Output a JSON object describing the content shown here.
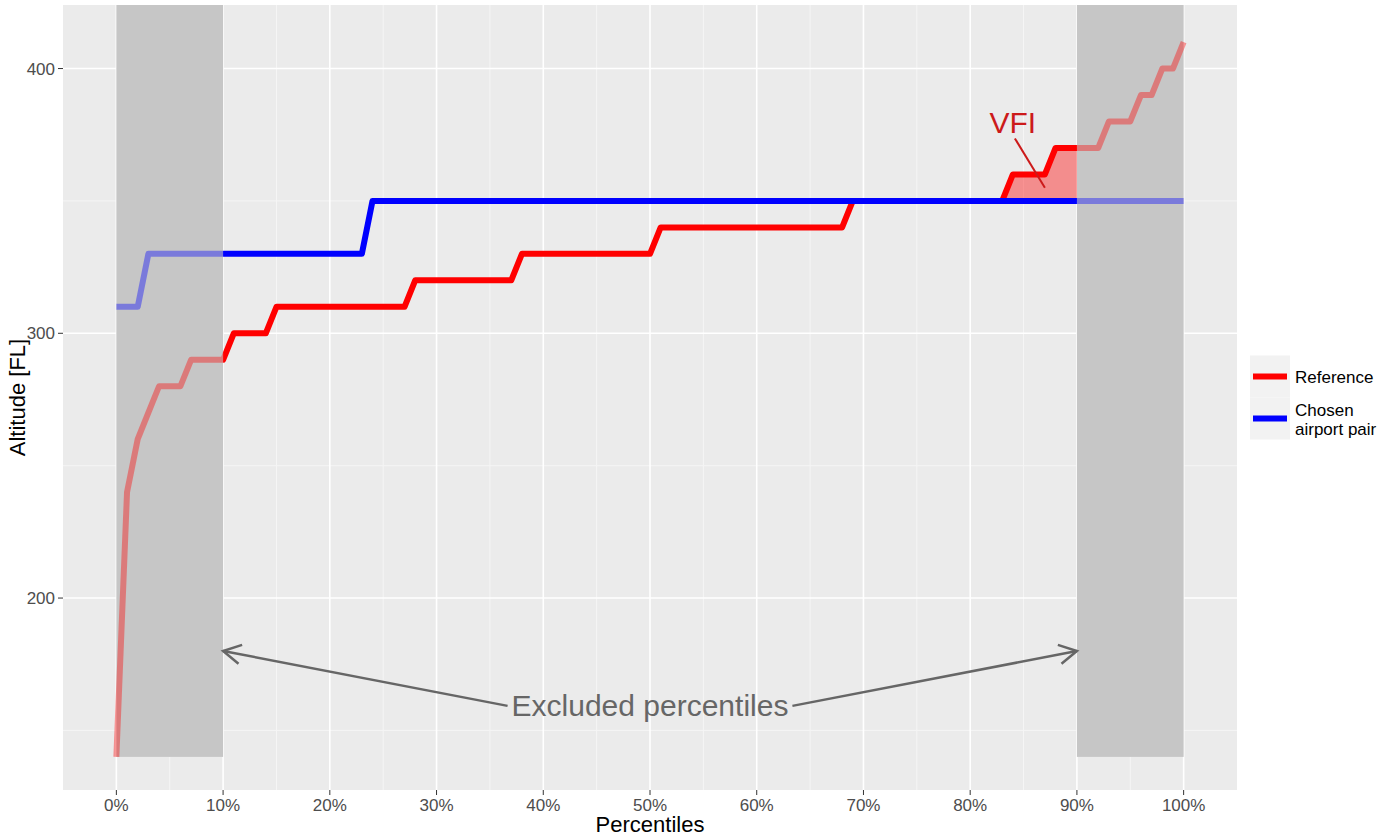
{
  "chart_data": {
    "type": "line",
    "x_label": "Percentiles",
    "y_label": "Altitude [FL]",
    "x": [
      0,
      1,
      2,
      3,
      4,
      5,
      6,
      7,
      8,
      9,
      10,
      11,
      12,
      13,
      14,
      15,
      16,
      17,
      18,
      19,
      20,
      21,
      22,
      23,
      24,
      25,
      26,
      27,
      28,
      29,
      30,
      31,
      32,
      33,
      34,
      35,
      36,
      37,
      38,
      39,
      40,
      41,
      42,
      43,
      44,
      45,
      46,
      47,
      48,
      49,
      50,
      51,
      52,
      53,
      54,
      55,
      56,
      57,
      58,
      59,
      60,
      61,
      62,
      63,
      64,
      65,
      66,
      67,
      68,
      69,
      70,
      71,
      72,
      73,
      74,
      75,
      76,
      77,
      78,
      79,
      80,
      81,
      82,
      83,
      84,
      85,
      86,
      87,
      88,
      89,
      90,
      91,
      92,
      93,
      94,
      95,
      96,
      97,
      98,
      99,
      100
    ],
    "xlim": [
      -5,
      105
    ],
    "xticks": [
      {
        "value": 0,
        "label": "0%"
      },
      {
        "value": 10,
        "label": "10%"
      },
      {
        "value": 20,
        "label": "20%"
      },
      {
        "value": 30,
        "label": "30%"
      },
      {
        "value": 40,
        "label": "40%"
      },
      {
        "value": 50,
        "label": "50%"
      },
      {
        "value": 60,
        "label": "60%"
      },
      {
        "value": 70,
        "label": "70%"
      },
      {
        "value": 80,
        "label": "80%"
      },
      {
        "value": 90,
        "label": "90%"
      },
      {
        "value": 100,
        "label": "100%"
      }
    ],
    "ylim": [
      127.5,
      424
    ],
    "yticks": [
      200,
      300,
      400
    ],
    "grid": true,
    "legend": "right",
    "series": [
      {
        "name": "Reference",
        "color": "#FF0000",
        "values": [
          140,
          240,
          260,
          270,
          280,
          280,
          280,
          290,
          290,
          290,
          290,
          300,
          300,
          300,
          300,
          310,
          310,
          310,
          310,
          310,
          310,
          310,
          310,
          310,
          310,
          310,
          310,
          310,
          320,
          320,
          320,
          320,
          320,
          320,
          320,
          320,
          320,
          320,
          330,
          330,
          330,
          330,
          330,
          330,
          330,
          330,
          330,
          330,
          330,
          330,
          330,
          340,
          340,
          340,
          340,
          340,
          340,
          340,
          340,
          340,
          340,
          340,
          340,
          340,
          340,
          340,
          340,
          340,
          340,
          350,
          350,
          350,
          350,
          350,
          350,
          350,
          350,
          350,
          350,
          350,
          350,
          350,
          350,
          350,
          360,
          360,
          360,
          360,
          370,
          370,
          370,
          370,
          370,
          380,
          380,
          380,
          390,
          390,
          400,
          400,
          410
        ]
      },
      {
        "name": "Chosen airport pair",
        "color": "#0000FF",
        "values": [
          310,
          310,
          310,
          330,
          330,
          330,
          330,
          330,
          330,
          330,
          330,
          330,
          330,
          330,
          330,
          330,
          330,
          330,
          330,
          330,
          330,
          330,
          330,
          330,
          350,
          350,
          350,
          350,
          350,
          350,
          350,
          350,
          350,
          350,
          350,
          350,
          350,
          350,
          350,
          350,
          350,
          350,
          350,
          350,
          350,
          350,
          350,
          350,
          350,
          350,
          350,
          350,
          350,
          350,
          350,
          350,
          350,
          350,
          350,
          350,
          350,
          350,
          350,
          350,
          350,
          350,
          350,
          350,
          350,
          350,
          350,
          350,
          350,
          350,
          350,
          350,
          350,
          350,
          350,
          350,
          350,
          350,
          350,
          350,
          350,
          350,
          350,
          350,
          350,
          350,
          350,
          350,
          350,
          350,
          350,
          350,
          350,
          350,
          350,
          350,
          350
        ]
      }
    ],
    "annotations": [
      {
        "text": "VFI",
        "x": 84,
        "y": 375.5,
        "point_x": 87,
        "point_y": 355,
        "color": "#CC1A1A"
      },
      {
        "text": "Excluded percentiles",
        "x": 50,
        "y": 155.5,
        "point_y": 180,
        "band_bottom": 140,
        "excluded_ranges": [
          [
            0,
            10
          ],
          [
            90,
            100
          ]
        ]
      }
    ]
  }
}
